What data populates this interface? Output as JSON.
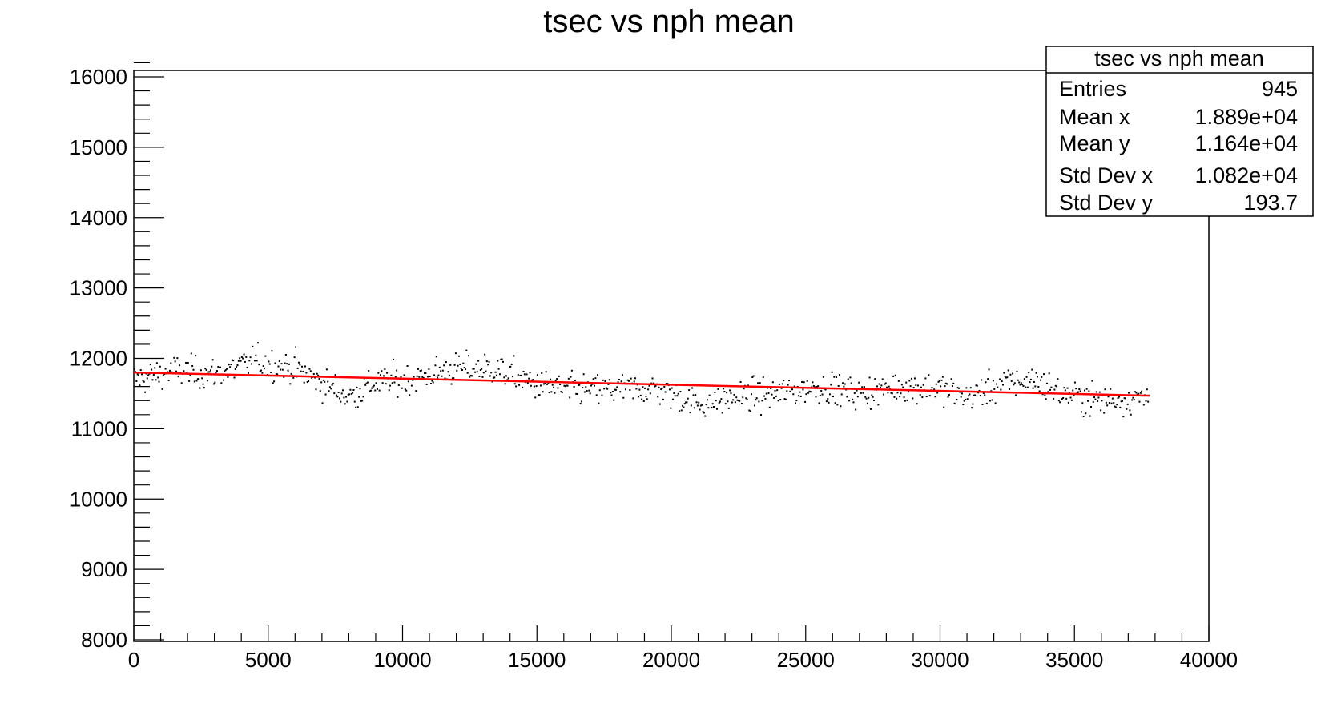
{
  "chart_data": {
    "type": "scatter",
    "title": "tsec vs nph mean",
    "xlabel": "",
    "ylabel": "",
    "xlim": [
      0,
      40000
    ],
    "ylim": [
      8000,
      16200
    ],
    "x_ticks": [
      0,
      5000,
      10000,
      15000,
      20000,
      25000,
      30000,
      35000,
      40000
    ],
    "y_ticks": [
      8000,
      9000,
      10000,
      11000,
      12000,
      13000,
      14000,
      15000,
      16000
    ],
    "x_tick_labels": [
      "0",
      "5000",
      "10000",
      "15000",
      "20000",
      "25000",
      "30000",
      "35000",
      "40000"
    ],
    "y_tick_labels": [
      "8000",
      "9000",
      "10000",
      "11000",
      "12000",
      "13000",
      "14000",
      "15000",
      "16000"
    ],
    "grid": false,
    "series": [
      {
        "kind": "points",
        "color": "#000000",
        "count": 945,
        "x_range": [
          0,
          37800
        ],
        "y_center": 11640,
        "trend_profile": [
          [
            0,
            11700
          ],
          [
            1500,
            11820
          ],
          [
            3000,
            11780
          ],
          [
            4500,
            11950
          ],
          [
            6000,
            11860
          ],
          [
            7000,
            11650
          ],
          [
            8000,
            11450
          ],
          [
            9000,
            11650
          ],
          [
            10500,
            11720
          ],
          [
            12000,
            11860
          ],
          [
            13500,
            11850
          ],
          [
            15000,
            11620
          ],
          [
            16500,
            11550
          ],
          [
            18000,
            11560
          ],
          [
            19500,
            11570
          ],
          [
            21000,
            11350
          ],
          [
            22500,
            11450
          ],
          [
            24000,
            11500
          ],
          [
            25500,
            11600
          ],
          [
            27000,
            11500
          ],
          [
            28500,
            11600
          ],
          [
            30000,
            11580
          ],
          [
            31000,
            11450
          ],
          [
            32500,
            11650
          ],
          [
            33500,
            11700
          ],
          [
            34500,
            11500
          ],
          [
            36000,
            11400
          ],
          [
            37800,
            11450
          ]
        ]
      },
      {
        "kind": "fit-line",
        "color": "#ff0000",
        "x": [
          0,
          37800
        ],
        "y": [
          11800,
          11470
        ]
      }
    ],
    "stats_box": {
      "title": "tsec vs nph mean",
      "position": "top-right",
      "rows": [
        {
          "label": "Entries",
          "value": "945"
        },
        {
          "label": "Mean x",
          "value": "1.889e+04"
        },
        {
          "label": "Mean y",
          "value": "1.164e+04"
        },
        {
          "label": "Std Dev x",
          "value": "1.082e+04"
        },
        {
          "label": "Std Dev y",
          "value": "193.7"
        }
      ]
    }
  }
}
